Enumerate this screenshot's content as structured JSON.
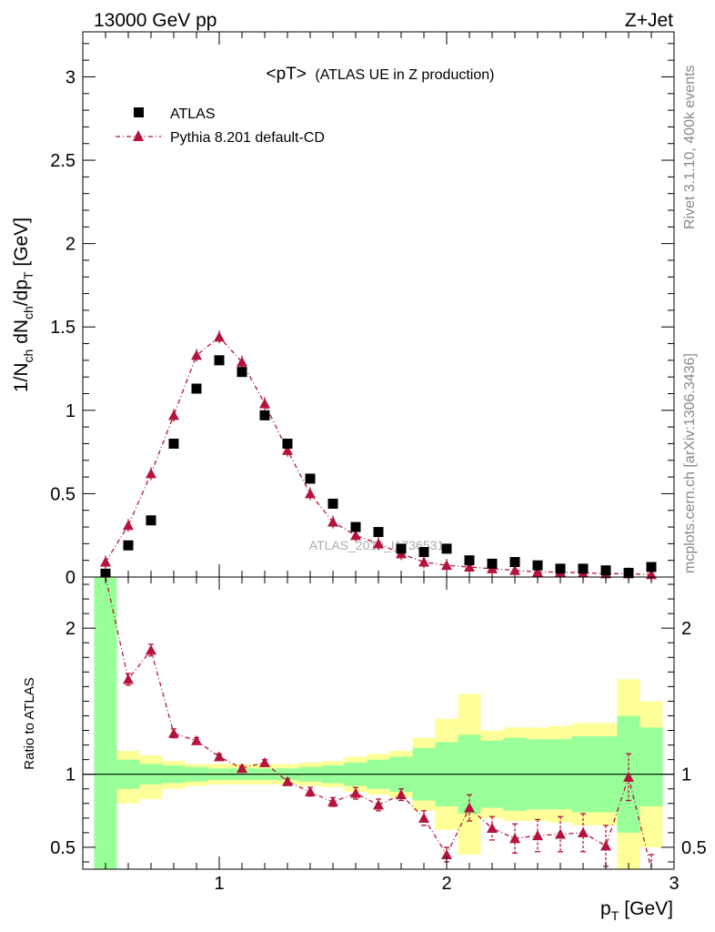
{
  "header": {
    "energy_label": "13000 GeV pp",
    "process_label": "Z+Jet"
  },
  "side_labels": {
    "rivet": "Rivet 3.1.10,  400k events",
    "mcplots": "mcplots.cern.ch [arXiv:1306.3436]"
  },
  "chart_data": {
    "type": "scatter",
    "title": "<pT> (ATLAS UE in Z production)",
    "title_main": "<pT>",
    "title_sub": "(ATLAS UE in Z production)",
    "watermark": "ATLAS_2019_I1736531",
    "x_axis": {
      "label_main": "p",
      "label_sub": "T",
      "label_unit": "[GeV]",
      "range": [
        0.4,
        3.0
      ],
      "ticks": [
        "1",
        "2",
        "3"
      ]
    },
    "main_panel": {
      "ylabel_parts": [
        "1/N",
        "ch",
        " dN",
        "ch",
        "/dp",
        "T",
        " [GeV]"
      ],
      "ylim": [
        0,
        3.27
      ],
      "yticks": [
        "0",
        "0.5",
        "1",
        "1.5",
        "2",
        "2.5",
        "3"
      ],
      "legend_position": "top-left",
      "x": [
        0.5,
        0.6,
        0.7,
        0.8,
        0.9,
        1.0,
        1.1,
        1.2,
        1.3,
        1.4,
        1.5,
        1.6,
        1.7,
        1.8,
        1.9,
        2.0,
        2.1,
        2.2,
        2.3,
        2.4,
        2.5,
        2.6,
        2.7,
        2.8,
        2.9
      ],
      "series": [
        {
          "name": "ATLAS",
          "color": "#000000",
          "marker": "square",
          "values": [
            0.02,
            0.19,
            0.34,
            0.8,
            1.13,
            1.3,
            1.23,
            0.97,
            0.8,
            0.59,
            0.44,
            0.3,
            0.27,
            0.17,
            0.15,
            0.17,
            0.1,
            0.08,
            0.09,
            0.07,
            0.05,
            0.05,
            0.04,
            0.025,
            0.06
          ]
        },
        {
          "name": "Pythia 8.201 default-CD",
          "color": "#b5123c",
          "marker": "triangle",
          "values": [
            0.09,
            0.31,
            0.62,
            0.97,
            1.33,
            1.44,
            1.29,
            1.04,
            0.76,
            0.5,
            0.33,
            0.25,
            0.2,
            0.14,
            0.09,
            0.07,
            0.06,
            0.05,
            0.04,
            0.03,
            0.03,
            0.025,
            0.02,
            0.02,
            0.015
          ]
        }
      ]
    },
    "ratio_panel": {
      "ylabel": "Ratio to ATLAS",
      "ylim": [
        0.35,
        2.35
      ],
      "yticks": [
        "0.5",
        "1",
        "2"
      ],
      "reference": 1.0,
      "ratio": [
        2.9,
        1.65,
        1.85,
        1.28,
        1.23,
        1.12,
        1.04,
        1.08,
        0.95,
        0.88,
        0.81,
        0.87,
        0.79,
        0.86,
        0.7,
        0.45,
        0.77,
        0.63,
        0.56,
        0.58,
        0.59,
        0.6,
        0.51,
        0.98,
        0.25
      ],
      "ratio_err": [
        0.05,
        0.04,
        0.04,
        0.03,
        0.02,
        0.02,
        0.02,
        0.02,
        0.02,
        0.03,
        0.03,
        0.04,
        0.04,
        0.04,
        0.05,
        0.05,
        0.09,
        0.08,
        0.1,
        0.11,
        0.12,
        0.13,
        0.14,
        0.16,
        0.2
      ],
      "band_stat_low": [
        0.35,
        0.9,
        0.93,
        0.94,
        0.95,
        0.96,
        0.96,
        0.96,
        0.96,
        0.95,
        0.94,
        0.92,
        0.9,
        0.88,
        0.82,
        0.78,
        0.73,
        0.77,
        0.75,
        0.76,
        0.76,
        0.74,
        0.74,
        0.6,
        0.78
      ],
      "band_stat_high": [
        2.35,
        1.1,
        1.07,
        1.06,
        1.05,
        1.04,
        1.04,
        1.04,
        1.04,
        1.05,
        1.06,
        1.08,
        1.1,
        1.12,
        1.18,
        1.22,
        1.27,
        1.23,
        1.25,
        1.24,
        1.24,
        1.26,
        1.26,
        1.4,
        1.32
      ],
      "band_total_low": [
        0.35,
        0.8,
        0.83,
        0.9,
        0.92,
        0.93,
        0.93,
        0.93,
        0.93,
        0.92,
        0.91,
        0.88,
        0.86,
        0.84,
        0.75,
        0.62,
        0.45,
        0.7,
        0.68,
        0.68,
        0.67,
        0.65,
        0.65,
        0.35,
        0.5
      ],
      "band_total_high": [
        2.35,
        1.16,
        1.13,
        1.09,
        1.07,
        1.07,
        1.07,
        1.07,
        1.07,
        1.08,
        1.09,
        1.12,
        1.14,
        1.16,
        1.25,
        1.38,
        1.55,
        1.3,
        1.32,
        1.32,
        1.33,
        1.35,
        1.35,
        1.65,
        1.5
      ],
      "stat_color": "#99ff99",
      "total_color": "#ffff99"
    }
  }
}
